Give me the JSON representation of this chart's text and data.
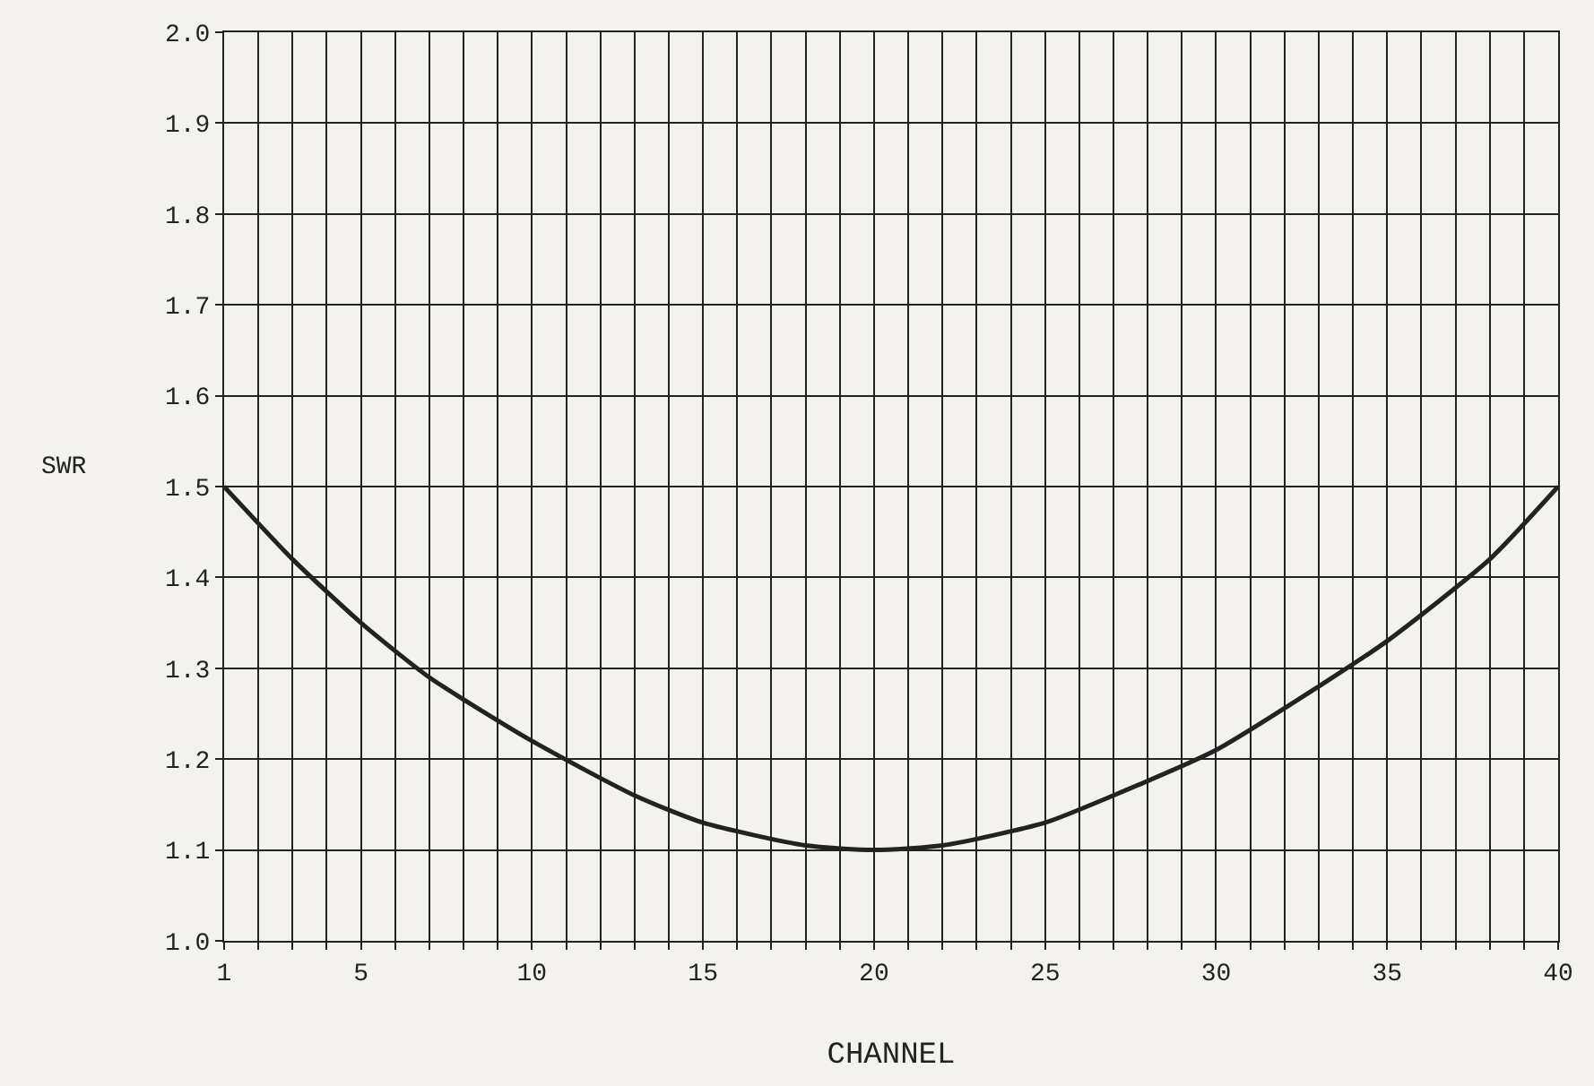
{
  "chart_data": {
    "type": "line",
    "xlabel": "CHANNEL",
    "ylabel": "SWR",
    "x": [
      1,
      3,
      5,
      7,
      10,
      13,
      15,
      18,
      20,
      22,
      25,
      27,
      30,
      33,
      35,
      38,
      40
    ],
    "series": [
      {
        "color": "#222222",
        "values": [
          1.5,
          1.42,
          1.35,
          1.29,
          1.22,
          1.16,
          1.13,
          1.105,
          1.1,
          1.105,
          1.13,
          1.16,
          1.21,
          1.28,
          1.33,
          1.42,
          1.5
        ]
      }
    ],
    "xlim": [
      1,
      40
    ],
    "xticks": [
      1,
      {
        "value": 2,
        "label": null
      },
      {
        "value": 3,
        "label": null
      },
      {
        "value": 4,
        "label": null
      },
      5,
      {
        "value": 6,
        "label": null
      },
      {
        "value": 7,
        "label": null
      },
      {
        "value": 8,
        "label": null
      },
      {
        "value": 9,
        "label": null
      },
      10,
      {
        "value": 11,
        "label": null
      },
      {
        "value": 12,
        "label": null
      },
      {
        "value": 13,
        "label": null
      },
      {
        "value": 14,
        "label": null
      },
      15,
      {
        "value": 16,
        "label": null
      },
      {
        "value": 17,
        "label": null
      },
      {
        "value": 18,
        "label": null
      },
      {
        "value": 19,
        "label": null
      },
      20,
      {
        "value": 21,
        "label": null
      },
      {
        "value": 22,
        "label": null
      },
      {
        "value": 23,
        "label": null
      },
      {
        "value": 24,
        "label": null
      },
      25,
      {
        "value": 26,
        "label": null
      },
      {
        "value": 27,
        "label": null
      },
      {
        "value": 28,
        "label": null
      },
      {
        "value": 29,
        "label": null
      },
      30,
      {
        "value": 31,
        "label": null
      },
      {
        "value": 32,
        "label": null
      },
      {
        "value": 33,
        "label": null
      },
      {
        "value": 34,
        "label": null
      },
      35,
      {
        "value": 36,
        "label": null
      },
      {
        "value": 37,
        "label": null
      },
      {
        "value": 38,
        "label": null
      },
      {
        "value": 39,
        "label": null
      },
      40
    ],
    "ylim": [
      1.0,
      2.0
    ],
    "yticks": [
      {
        "value": 1.0,
        "label": "1.0"
      },
      1.1,
      1.2,
      1.3,
      1.4,
      1.5,
      1.6,
      1.7,
      1.8,
      1.9,
      {
        "value": 2.0,
        "label": "2.0"
      }
    ],
    "grid": true,
    "marker": "none",
    "line_style": "solid"
  }
}
